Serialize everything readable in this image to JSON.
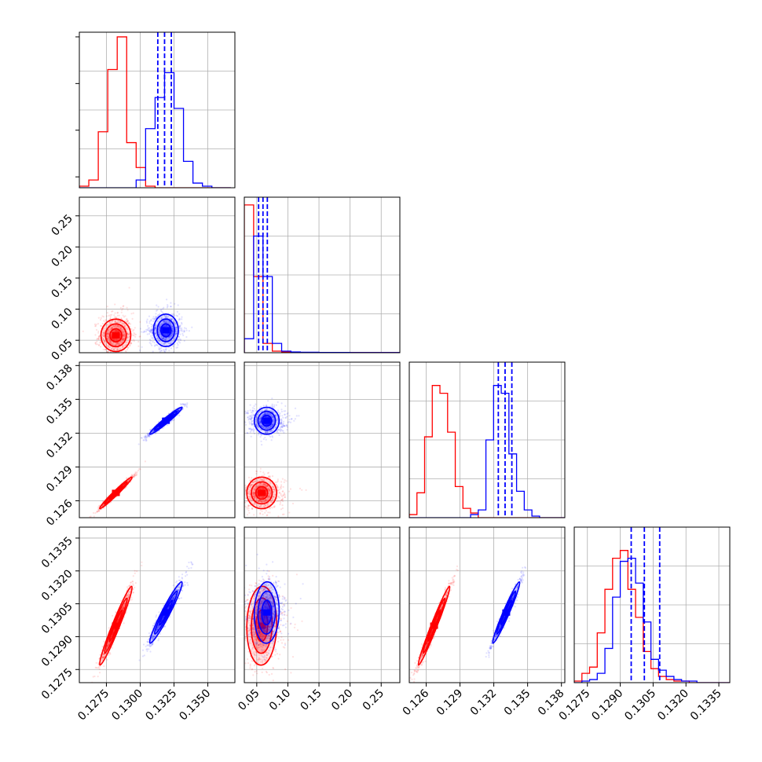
{
  "chart_data": {
    "type": "corner",
    "grid": true,
    "colors": {
      "series_a": "#ff0000",
      "series_b": "#0000ff"
    },
    "params": [
      {
        "range": [
          0.1255,
          0.137
        ],
        "ticks": [
          0.1275,
          0.13,
          0.1325,
          0.135
        ],
        "tick_labels": [
          "0.1275",
          "0.1300",
          "0.1325",
          "0.1350"
        ]
      },
      {
        "range": [
          0.03,
          0.28
        ],
        "ticks": [
          0.05,
          0.1,
          0.15,
          0.2,
          0.25
        ],
        "tick_labels": [
          "0.05",
          "0.10",
          "0.15",
          "0.20",
          "0.25"
        ]
      },
      {
        "range": [
          0.1245,
          0.1383
        ],
        "ticks": [
          0.126,
          0.129,
          0.132,
          0.135,
          0.138
        ],
        "tick_labels": [
          "0.126",
          "0.129",
          "0.132",
          "0.135",
          "0.138"
        ]
      },
      {
        "range": [
          0.1269,
          0.134
        ],
        "ticks": [
          0.1275,
          0.129,
          0.1305,
          0.132,
          0.1335
        ],
        "tick_labels": [
          "0.1275",
          "0.1290",
          "0.1305",
          "0.1320",
          "0.1335"
        ]
      }
    ],
    "series": [
      {
        "color": "#ff0000",
        "mean": [
          0.1282,
          0.058,
          0.1267,
          0.1295
        ],
        "sd": [
          0.0006,
          0.012,
          0.0007,
          0.0009
        ],
        "corr": [
          [
            1,
            0,
            0.98,
            0.97
          ],
          [
            0,
            1,
            0,
            0.05
          ],
          [
            0.98,
            0,
            1,
            0.98
          ],
          [
            0.97,
            0.05,
            0.98,
            1
          ]
        ]
      },
      {
        "color": "#0000ff",
        "mean": [
          0.1319,
          0.066,
          0.1331,
          0.1301
        ],
        "sd": [
          0.0006,
          0.01,
          0.0006,
          0.0007
        ],
        "corr": [
          [
            1,
            0,
            0.97,
            0.96
          ],
          [
            0,
            1,
            0,
            0.05
          ],
          [
            0.97,
            0,
            1,
            0.97
          ],
          [
            0.96,
            0.05,
            0.97,
            1
          ]
        ]
      }
    ],
    "histograms": [
      {
        "bins": [
          0.1255,
          0.1262,
          0.1269,
          0.1276,
          0.1283,
          0.129,
          0.1297,
          0.1304,
          0.1311,
          0.1318,
          0.1325,
          0.1332,
          0.1339,
          0.1346,
          0.1353,
          0.136,
          0.1367
        ],
        "red": [
          0.01,
          0.05,
          0.36,
          0.76,
          0.97,
          0.29,
          0.13,
          0.01,
          0,
          0,
          0,
          0,
          0,
          0,
          0,
          0
        ],
        "blue": [
          0,
          0,
          0,
          0,
          0,
          0,
          0.05,
          0.38,
          0.58,
          0.74,
          0.51,
          0.17,
          0.03,
          0.01,
          0,
          0
        ]
      },
      {
        "bins": [
          0.03,
          0.045,
          0.06,
          0.075,
          0.09,
          0.105,
          0.12,
          0.15,
          0.2,
          0.28
        ],
        "red": [
          0.95,
          0.49,
          0.06,
          0.01,
          0.005,
          0.003,
          0.002,
          0.002,
          0.001
        ],
        "blue": [
          0.09,
          0.75,
          0.49,
          0.06,
          0.01,
          0.005,
          0.003,
          0.002,
          0.001
        ]
      },
      {
        "bins": [
          0.1245,
          0.12518,
          0.12586,
          0.12654,
          0.12722,
          0.1279,
          0.12858,
          0.12926,
          0.12994,
          0.13062,
          0.1313,
          0.13198,
          0.13266,
          0.13334,
          0.13402,
          0.1347,
          0.13538,
          0.13606,
          0.13674,
          0.13742,
          0.1383
        ],
        "red": [
          0.02,
          0.16,
          0.52,
          0.85,
          0.8,
          0.55,
          0.2,
          0.06,
          0.03,
          0,
          0,
          0,
          0,
          0,
          0,
          0,
          0,
          0,
          0,
          0
        ],
        "blue": [
          0,
          0,
          0,
          0,
          0,
          0,
          0,
          0,
          0.02,
          0.05,
          0.5,
          0.85,
          0.8,
          0.41,
          0.17,
          0.05,
          0.01,
          0,
          0,
          0
        ]
      },
      {
        "bins": [
          0.1269,
          0.12725,
          0.1276,
          0.12795,
          0.1283,
          0.12865,
          0.129,
          0.12935,
          0.1297,
          0.13005,
          0.1304,
          0.13075,
          0.1311,
          0.13145,
          0.1318,
          0.13215,
          0.1325,
          0.13285,
          0.1332,
          0.134
        ],
        "red": [
          0.01,
          0.06,
          0.1,
          0.32,
          0.6,
          0.8,
          0.85,
          0.6,
          0.42,
          0.2,
          0.09,
          0.04,
          0.02,
          0.01,
          0.01,
          0,
          0,
          0,
          0
        ],
        "blue": [
          0,
          0.01,
          0.02,
          0.06,
          0.22,
          0.55,
          0.78,
          0.8,
          0.64,
          0.39,
          0.15,
          0.08,
          0.04,
          0.02,
          0.01,
          0.01,
          0,
          0,
          0
        ]
      }
    ],
    "quantile_lines": [
      [
        0.1313,
        0.1318,
        0.1323
      ],
      [
        0.053,
        0.06,
        0.067
      ],
      [
        0.1324,
        0.133,
        0.1336
      ],
      [
        0.1295,
        0.1301,
        0.1308
      ]
    ]
  }
}
